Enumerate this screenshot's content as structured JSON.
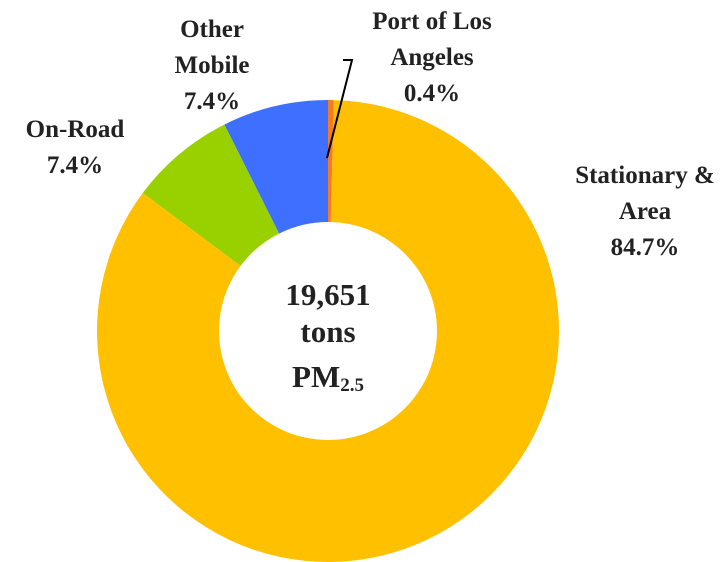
{
  "chart_data": {
    "type": "donut",
    "categories": [
      "Port of Los Angeles",
      "Stationary & Area",
      "On-Road",
      "Other Mobile"
    ],
    "values": [
      0.4,
      84.7,
      7.4,
      7.4
    ],
    "value_labels": [
      "0.4%",
      "84.7%",
      "7.4%",
      "7.4%"
    ],
    "colors": [
      "#f47b20",
      "#ffc000",
      "#99d100",
      "#3f6fff"
    ],
    "center_label": {
      "lines": [
        "19,651",
        "tons"
      ],
      "unit": "PM",
      "unit_subscript": "2.5"
    }
  }
}
